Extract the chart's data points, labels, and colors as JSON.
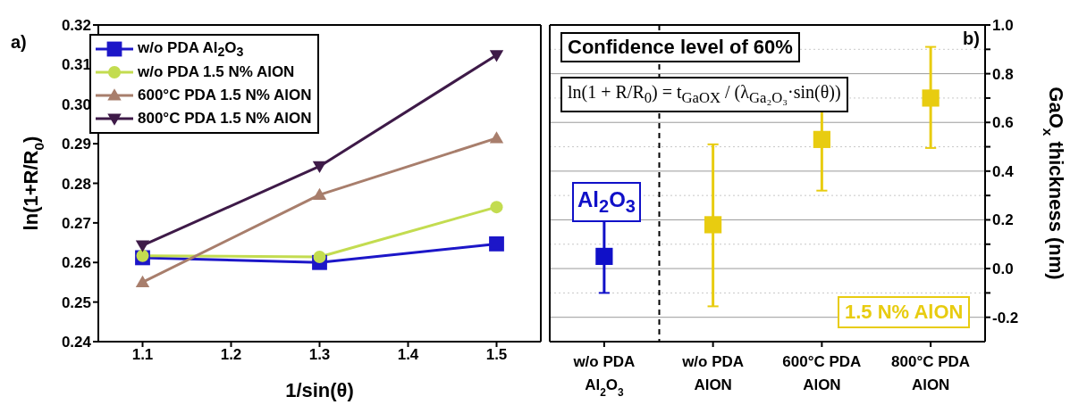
{
  "chart_data": [
    {
      "type": "line",
      "title": "a)",
      "xlabel": "1/sin(θ)",
      "ylabel": "ln(1+R/R$_{0}$)",
      "x": [
        1.1,
        1.3,
        1.5
      ],
      "series": [
        {
          "name": "w/o PDA Al$_{2}$O$_{3}$",
          "color": "#1c16c8",
          "marker": "square",
          "values": [
            0.2612,
            0.26,
            0.2647
          ]
        },
        {
          "name": "w/o PDA 1.5 N% AlON",
          "color": "#c3dc50",
          "marker": "circle",
          "values": [
            0.2617,
            0.2614,
            0.274
          ]
        },
        {
          "name": "600°C PDA 1.5 N% AlON",
          "color": "#a87e6c",
          "marker": "triangle",
          "values": [
            0.255,
            0.2771,
            0.2914
          ]
        },
        {
          "name": "800°C PDA 1.5 N% AlON",
          "color": "#3e1a48",
          "marker": "triangle-down",
          "values": [
            0.2643,
            0.2843,
            0.3124
          ]
        }
      ],
      "xlim": [
        1.05,
        1.55
      ],
      "xticks": [
        1.1,
        1.2,
        1.3,
        1.4,
        1.5
      ],
      "ylim": [
        0.24,
        0.32
      ],
      "yticks": [
        0.24,
        0.25,
        0.26,
        0.27,
        0.28,
        0.29,
        {
          "value": 0.3,
          "label": "0.30"
        },
        0.31,
        0.32
      ],
      "legend": "top left"
    },
    {
      "type": "scatter",
      "title": "b)",
      "ylabel": "GaO$_{x}$ thickness (nm)",
      "marker": "square",
      "categories": [
        "w/o PDA\nAl$_{2}$O$_{3}$",
        "w/o PDA\nAlON",
        "600°C PDA\nAlON",
        "800°C PDA\nAlON"
      ],
      "values": [
        0.05,
        0.18,
        0.53,
        0.7
      ],
      "colors": [
        "#1010c8",
        "#e8cc10",
        "#e8cc10",
        "#e8cc10"
      ],
      "errors": [
        [
          -0.1,
          0.205
        ],
        [
          -0.155,
          0.51
        ],
        [
          0.32,
          0.745
        ],
        [
          0.495,
          0.91
        ]
      ],
      "ylim": [
        -0.3,
        1.0
      ],
      "yticks": [
        {
          "value": -0.2,
          "label": "-0.2"
        },
        {
          "value": -0.1,
          "label": null
        },
        {
          "value": 0.0,
          "label": "0.0"
        },
        {
          "value": 0.1,
          "label": null
        },
        {
          "value": 0.2,
          "label": "0.2"
        },
        {
          "value": 0.3,
          "label": null
        },
        {
          "value": 0.4,
          "label": "0.4"
        },
        {
          "value": 0.5,
          "label": null
        },
        {
          "value": 0.6,
          "label": "0.6"
        },
        {
          "value": 0.7,
          "label": null
        },
        {
          "value": 0.8,
          "label": "0.8"
        },
        {
          "value": 0.9,
          "label": null
        },
        {
          "value": 1.0,
          "label": "1.0"
        }
      ],
      "grid": "y",
      "annotations": [
        "Confidence level of 60%",
        "ln(1 + R/R$_{0}$) = t$_{GaOX}$ / (λ$_{Ga₂O₃}$·sin(θ))",
        "Al$_{2}$O$_{3}$",
        "1.5 N% AlON"
      ]
    }
  ]
}
